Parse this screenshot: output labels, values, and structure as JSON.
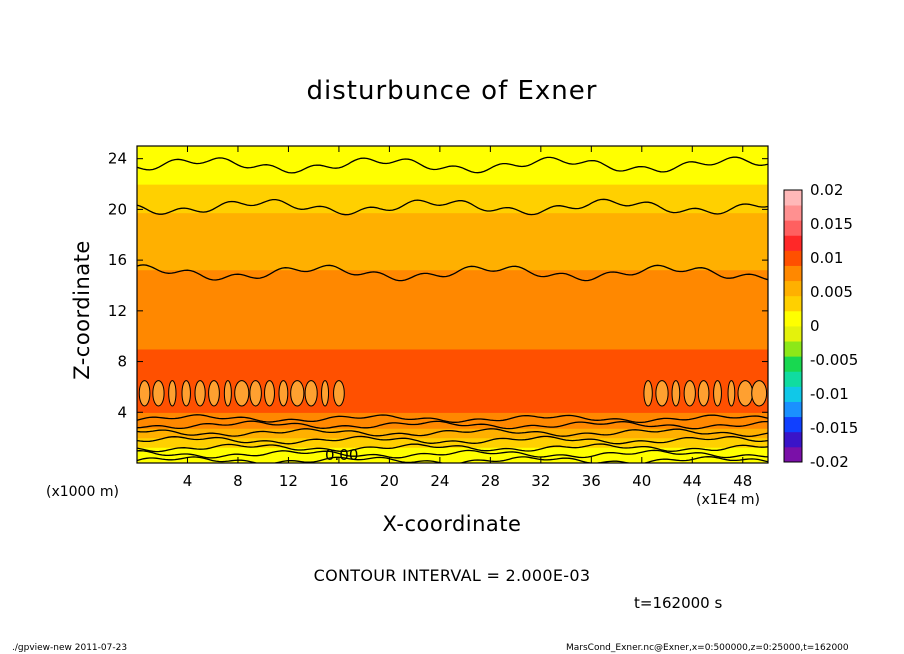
{
  "chart_data": {
    "type": "contour",
    "title": "disturbunce of Exner",
    "xlabel": "X-coordinate",
    "ylabel": "Z-coordinate",
    "x_unit_label": "(x1E4 m)",
    "y_unit_label": "(x1000 m)",
    "xlim": [
      0,
      50
    ],
    "ylim": [
      0,
      25
    ],
    "x_ticks": [
      4,
      8,
      12,
      16,
      20,
      24,
      28,
      32,
      36,
      40,
      44,
      48
    ],
    "y_ticks": [
      4,
      8,
      12,
      16,
      20,
      24
    ],
    "contour_interval_text": "CONTOUR INTERVAL = 2.000E-03",
    "contour_label": "0.00",
    "time_text": "t=162000 s",
    "colorbar": {
      "min": -0.02,
      "max": 0.02,
      "tick_labels": [
        "0.02",
        "0.015",
        "0.01",
        "0.005",
        "0",
        "-0.005",
        "-0.01",
        "-0.015",
        "-0.02"
      ],
      "colors": [
        "#7a10a8",
        "#3a14c8",
        "#1040ff",
        "#1a90ff",
        "#10c8e8",
        "#10dca0",
        "#18d850",
        "#8ce818",
        "#e4f20c",
        "#ffff00",
        "#ffd000",
        "#ffb000",
        "#ff8800",
        "#ff5000",
        "#ff2828",
        "#ff6060",
        "#ff9090",
        "#ffb8b8"
      ]
    },
    "profile": {
      "z": [
        0.5,
        1.5,
        2.5,
        3.5,
        4.5,
        6,
        8,
        10,
        12,
        14,
        16,
        18,
        20,
        22,
        24
      ],
      "value": [
        0.0,
        0.003,
        0.006,
        0.008,
        0.0095,
        0.0098,
        0.0092,
        0.0085,
        0.0079,
        0.0072,
        0.0064,
        0.0055,
        0.0043,
        0.0022,
        0.0005
      ]
    },
    "contour_levels_z": [
      0.2,
      0.7,
      1.2,
      1.8,
      2.4,
      3.0,
      3.5,
      15.0,
      20.2,
      23.5
    ],
    "high_blobs_z_range": [
      4.5,
      6.5
    ]
  },
  "footer": {
    "left": "./gpview-new  2011-07-23",
    "right": "MarsCond_Exner.nc@Exner,x=0:500000,z=0:25000,t=162000"
  }
}
